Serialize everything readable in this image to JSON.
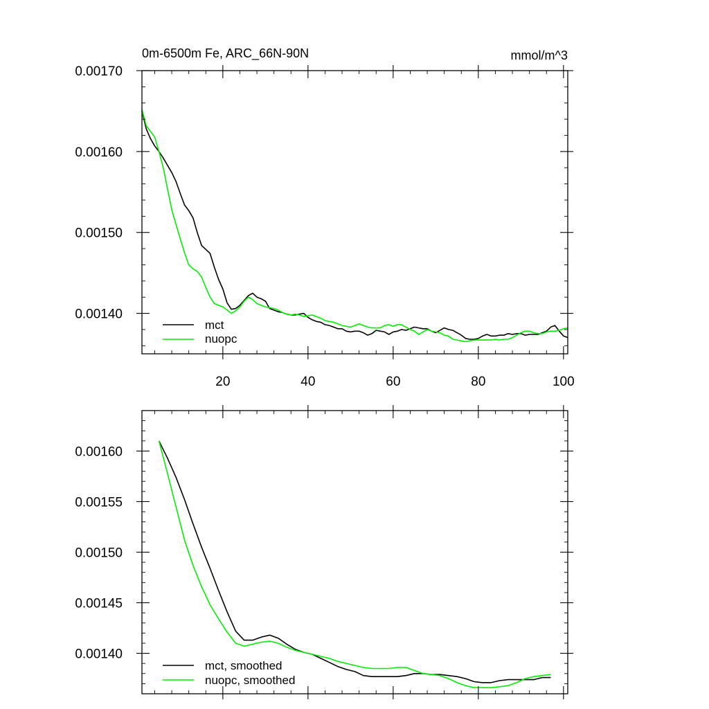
{
  "chart_data": [
    {
      "type": "line",
      "title": "0m-6500m Fe, ARC_66N-90N",
      "units": "mmol/m^3",
      "xlabel": "",
      "ylabel": "",
      "xlim": [
        1,
        101
      ],
      "ylim": [
        0.00135,
        0.0017
      ],
      "xticks": [
        20,
        40,
        60,
        80,
        100
      ],
      "xtick_labels": [
        "20",
        "40",
        "60",
        "80",
        "100"
      ],
      "yticks": [
        0.0014,
        0.0015,
        0.0016,
        0.0017
      ],
      "ytick_labels": [
        "0.00140",
        "0.00150",
        "0.00160",
        "0.00170"
      ],
      "legend_position": "bottom-left",
      "series": [
        {
          "name": "mct",
          "color": "#000000",
          "x": [
            1,
            2,
            3,
            4,
            5,
            6,
            7,
            8,
            9,
            10,
            11,
            12,
            13,
            14,
            15,
            16,
            17,
            18,
            19,
            20,
            21,
            22,
            23,
            24,
            25,
            26,
            27,
            28,
            29,
            30,
            31,
            32,
            33,
            34,
            35,
            36,
            37,
            38,
            39,
            40,
            41,
            42,
            43,
            44,
            45,
            46,
            47,
            48,
            49,
            50,
            51,
            52,
            53,
            54,
            55,
            56,
            57,
            58,
            59,
            60,
            61,
            62,
            63,
            64,
            65,
            66,
            67,
            68,
            69,
            70,
            71,
            72,
            73,
            74,
            75,
            76,
            77,
            78,
            79,
            80,
            81,
            82,
            83,
            84,
            85,
            86,
            87,
            88,
            89,
            90,
            91,
            92,
            93,
            94,
            95,
            96,
            97,
            98,
            99,
            100,
            101
          ],
          "values": [
            0.00165,
            0.001628,
            0.001616,
            0.001607,
            0.0016,
            0.001592,
            0.001583,
            0.001574,
            0.001563,
            0.001548,
            0.001534,
            0.001527,
            0.001518,
            0.0015,
            0.001484,
            0.001479,
            0.001474,
            0.001457,
            0.001442,
            0.00143,
            0.001413,
            0.001405,
            0.001406,
            0.00141,
            0.001416,
            0.001422,
            0.001425,
            0.00142,
            0.001418,
            0.001415,
            0.001406,
            0.001404,
            0.001402,
            0.001401,
            0.001399,
            0.001398,
            0.001398,
            0.001399,
            0.0014,
            0.001395,
            0.001392,
            0.00139,
            0.001389,
            0.001386,
            0.001385,
            0.001383,
            0.001381,
            0.001381,
            0.001378,
            0.001377,
            0.001378,
            0.001378,
            0.001376,
            0.001373,
            0.001375,
            0.001379,
            0.001378,
            0.001377,
            0.001374,
            0.001377,
            0.001378,
            0.00138,
            0.001379,
            0.001381,
            0.001383,
            0.001382,
            0.001381,
            0.001381,
            0.001378,
            0.001376,
            0.001379,
            0.001382,
            0.00138,
            0.001379,
            0.001376,
            0.001373,
            0.001369,
            0.001368,
            0.001368,
            0.001369,
            0.001372,
            0.001374,
            0.001372,
            0.001372,
            0.001373,
            0.001373,
            0.001375,
            0.001374,
            0.001375,
            0.001375,
            0.001373,
            0.001374,
            0.001374,
            0.001374,
            0.001376,
            0.001378,
            0.001383,
            0.001385,
            0.001378,
            0.001372,
            0.00137
          ]
        },
        {
          "name": "nuopc",
          "color": "#00ee00",
          "x": [
            1,
            2,
            3,
            4,
            5,
            6,
            7,
            8,
            9,
            10,
            11,
            12,
            13,
            14,
            15,
            16,
            17,
            18,
            19,
            20,
            21,
            22,
            23,
            24,
            25,
            26,
            27,
            28,
            29,
            30,
            31,
            32,
            33,
            34,
            35,
            36,
            37,
            38,
            39,
            40,
            41,
            42,
            43,
            44,
            45,
            46,
            47,
            48,
            49,
            50,
            51,
            52,
            53,
            54,
            55,
            56,
            57,
            58,
            59,
            60,
            61,
            62,
            63,
            64,
            65,
            66,
            67,
            68,
            69,
            70,
            71,
            72,
            73,
            74,
            75,
            76,
            77,
            78,
            79,
            80,
            81,
            82,
            83,
            84,
            85,
            86,
            87,
            88,
            89,
            90,
            91,
            92,
            93,
            94,
            95,
            96,
            97,
            98,
            99,
            100,
            101
          ],
          "values": [
            0.001652,
            0.001632,
            0.001625,
            0.001618,
            0.0016,
            0.00158,
            0.001554,
            0.001528,
            0.00151,
            0.001492,
            0.001475,
            0.00146,
            0.001455,
            0.001452,
            0.001445,
            0.001432,
            0.00142,
            0.001412,
            0.00141,
            0.001408,
            0.001404,
            0.0014,
            0.001403,
            0.001408,
            0.001415,
            0.00142,
            0.001417,
            0.001412,
            0.00141,
            0.001408,
            0.001407,
            0.001406,
            0.001404,
            0.001401,
            0.001399,
            0.001398,
            0.001399,
            0.001398,
            0.001396,
            0.001397,
            0.001398,
            0.001396,
            0.001394,
            0.001391,
            0.00139,
            0.001389,
            0.001387,
            0.001385,
            0.001384,
            0.001383,
            0.001385,
            0.001387,
            0.001385,
            0.001383,
            0.001382,
            0.001382,
            0.001382,
            0.001385,
            0.001386,
            0.001384,
            0.001386,
            0.001386,
            0.001383,
            0.00138,
            0.001378,
            0.001374,
            0.001377,
            0.00138,
            0.001378,
            0.001377,
            0.001376,
            0.001373,
            0.001372,
            0.001368,
            0.001367,
            0.001366,
            0.001365,
            0.001366,
            0.001367,
            0.001367,
            0.001367,
            0.001367,
            0.001367,
            0.001368,
            0.001367,
            0.001368,
            0.001368,
            0.00137,
            0.001373,
            0.001376,
            0.001378,
            0.001378,
            0.001376,
            0.001375,
            0.001375,
            0.001377,
            0.001378,
            0.001378,
            0.001379,
            0.001381,
            0.001382
          ]
        }
      ]
    },
    {
      "type": "line",
      "title": "",
      "xlabel": "",
      "ylabel": "",
      "xlim": [
        1,
        101
      ],
      "ylim": [
        0.00136,
        0.00164
      ],
      "xticks": [
        20,
        40,
        60,
        80,
        100
      ],
      "xtick_labels": [],
      "yticks": [
        0.0014,
        0.00145,
        0.0015,
        0.00155,
        0.0016
      ],
      "ytick_labels": [
        "0.00140",
        "0.00145",
        "0.00150",
        "0.00155",
        "0.00160"
      ],
      "legend_position": "bottom-left",
      "series": [
        {
          "name": "mct, smoothed",
          "color": "#000000",
          "x": [
            5,
            7,
            9,
            11,
            13,
            15,
            17,
            19,
            21,
            23,
            25,
            27,
            29,
            31,
            33,
            35,
            37,
            39,
            41,
            43,
            45,
            47,
            49,
            51,
            53,
            55,
            57,
            59,
            61,
            63,
            65,
            67,
            69,
            71,
            73,
            75,
            77,
            79,
            81,
            83,
            85,
            87,
            89,
            91,
            93,
            95,
            97
          ],
          "values": [
            0.00161,
            0.001593,
            0.001574,
            0.001552,
            0.001528,
            0.001505,
            0.001484,
            0.001462,
            0.001441,
            0.001422,
            0.001413,
            0.001413,
            0.001416,
            0.001418,
            0.001415,
            0.001409,
            0.001404,
            0.001401,
            0.001399,
            0.001395,
            0.001391,
            0.001387,
            0.001384,
            0.001382,
            0.001378,
            0.001377,
            0.001377,
            0.001377,
            0.001377,
            0.001378,
            0.00138,
            0.00138,
            0.001379,
            0.001379,
            0.001378,
            0.001377,
            0.001375,
            0.001372,
            0.001371,
            0.001371,
            0.001373,
            0.001374,
            0.001374,
            0.001374,
            0.001374,
            0.001376,
            0.001376
          ]
        },
        {
          "name": "nuopc, smoothed",
          "color": "#00ee00",
          "x": [
            5,
            7,
            9,
            11,
            13,
            15,
            17,
            19,
            21,
            23,
            25,
            27,
            29,
            31,
            33,
            35,
            37,
            39,
            41,
            43,
            45,
            47,
            49,
            51,
            53,
            55,
            57,
            59,
            61,
            63,
            65,
            67,
            69,
            71,
            73,
            75,
            77,
            79,
            81,
            83,
            85,
            87,
            89,
            91,
            93,
            95,
            97
          ],
          "values": [
            0.00161,
            0.001578,
            0.001545,
            0.001512,
            0.001487,
            0.001466,
            0.001448,
            0.001434,
            0.001421,
            0.00141,
            0.001407,
            0.001409,
            0.001411,
            0.001412,
            0.00141,
            0.001406,
            0.001403,
            0.001401,
            0.001399,
            0.001397,
            0.001395,
            0.001392,
            0.00139,
            0.001388,
            0.001386,
            0.001385,
            0.001385,
            0.001385,
            0.001386,
            0.001386,
            0.001383,
            0.00138,
            0.001379,
            0.001378,
            0.001375,
            0.001371,
            0.001368,
            0.001366,
            0.001366,
            0.001366,
            0.001367,
            0.001368,
            0.001371,
            0.001375,
            0.001377,
            0.001378,
            0.001379
          ]
        }
      ]
    }
  ]
}
